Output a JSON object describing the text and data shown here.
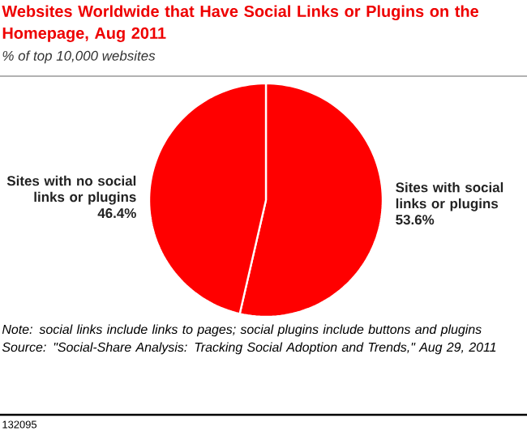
{
  "chart_data": {
    "type": "pie",
    "title": "Websites Worldwide that Have Social Links or Plugins on the Homepage, Aug 2011",
    "subtitle": "% of top 10,000 websites",
    "categories": [
      "Sites with social links or plugins",
      "Sites with no social links or plugins"
    ],
    "values": [
      53.6,
      46.4
    ],
    "value_labels": [
      "53.6%",
      "46.4%"
    ],
    "colors": [
      "#ff0000",
      "#ff0000"
    ],
    "annotations": [
      "Note: social links include links to pages; social plugins include buttons and plugins",
      "Source: \"Social-Share Analysis: Tracking Social Adoption and Trends,\" Aug 29, 2011",
      "132095"
    ]
  }
}
